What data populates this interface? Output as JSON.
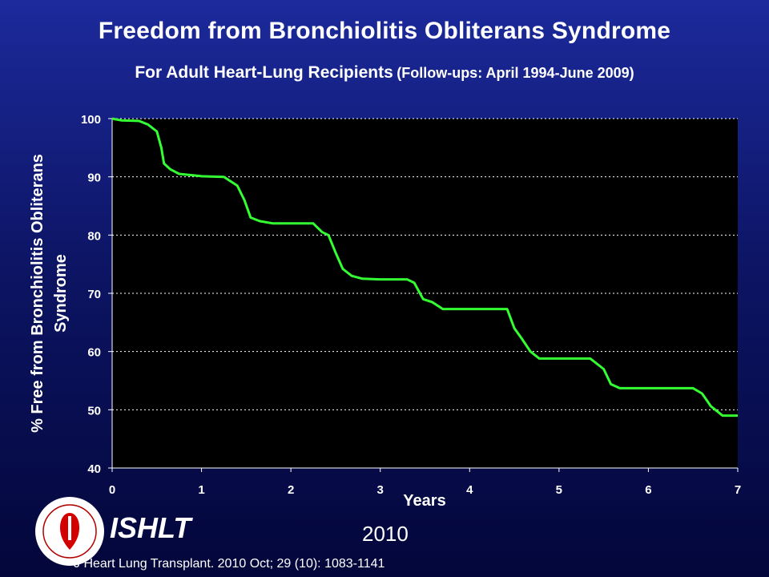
{
  "header": {
    "title": "Freedom from Bronchiolitis Obliterans Syndrome",
    "subtitle_main": "For Adult Heart-Lung Recipients",
    "subtitle_note": "(Follow-ups: April 1994-June 2009)"
  },
  "footer": {
    "org": "ISHLT",
    "year": "2010",
    "citation": "J Heart Lung Transplant. 2010 Oct; 29 (10): 1083-1141"
  },
  "colors": {
    "plot_bg": "#000000",
    "curve": "#33ff33",
    "grid": "#ffffff",
    "text": "#ffffff"
  },
  "chart_data": {
    "type": "line",
    "xlabel": "Years",
    "ylabel": "% Free from Bronchiolitis Obliterans Syndrome",
    "xlim": [
      0,
      7
    ],
    "ylim": [
      40,
      100
    ],
    "xticks": [
      0,
      1,
      2,
      3,
      4,
      5,
      6,
      7
    ],
    "yticks": [
      40,
      50,
      60,
      70,
      80,
      90,
      100
    ],
    "grid": "horizontal-dotted",
    "legend": "none",
    "series": [
      {
        "x": [
          0,
          0.1,
          0.3,
          0.4,
          0.5,
          0.55,
          0.58,
          0.65,
          0.75,
          0.95,
          1.0,
          1.25,
          1.4,
          1.48,
          1.55,
          1.65,
          1.8,
          2.0,
          2.25,
          2.35,
          2.42,
          2.5,
          2.58,
          2.68,
          2.8,
          3.0,
          3.3,
          3.38,
          3.48,
          3.58,
          3.7,
          4.0,
          4.42,
          4.5,
          4.58,
          4.68,
          4.78,
          5.0,
          5.35,
          5.5,
          5.58,
          5.68,
          6.0,
          6.5,
          6.6,
          6.7,
          6.83,
          7.0
        ],
        "y": [
          100,
          99.7,
          99.6,
          99.0,
          97.8,
          95,
          92.3,
          91.3,
          90.5,
          90.2,
          90.1,
          90.0,
          88.5,
          86,
          83,
          82.4,
          82.0,
          82.0,
          82.0,
          80.5,
          80.0,
          77,
          74.2,
          73.0,
          72.5,
          72.4,
          72.4,
          71.8,
          69.0,
          68.5,
          67.3,
          67.3,
          67.3,
          64,
          62.3,
          60.0,
          58.8,
          58.8,
          58.8,
          57,
          54.4,
          53.7,
          53.7,
          53.7,
          52.8,
          50.6,
          49.0,
          49.0
        ]
      }
    ]
  }
}
